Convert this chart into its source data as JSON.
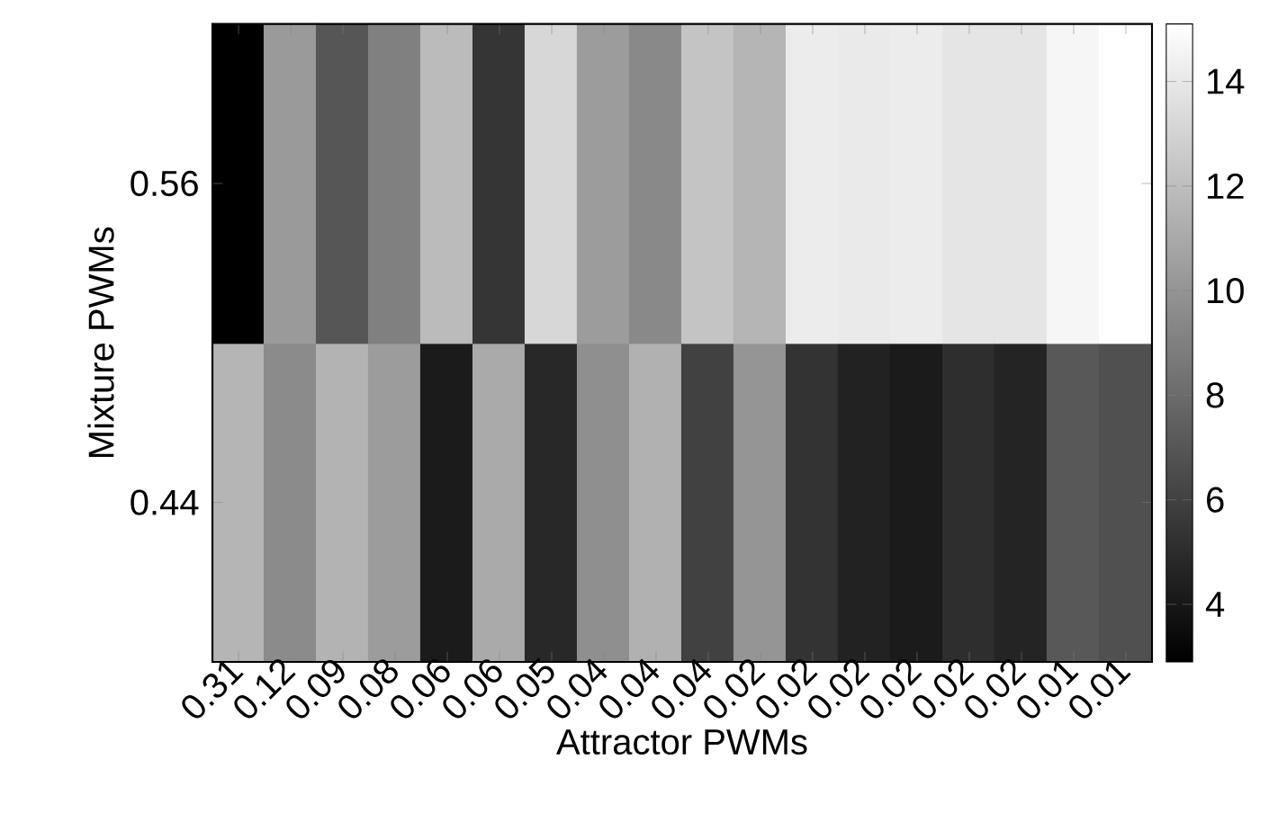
{
  "chart_data": {
    "type": "heatmap",
    "xlabel": "Attractor PWMs",
    "ylabel": "Mixture PWMs",
    "categories": [
      "0.31",
      "0.12",
      "0.09",
      "0.08",
      "0.06",
      "0.06",
      "0.05",
      "0.04",
      "0.04",
      "0.04",
      "0.02",
      "0.02",
      "0.02",
      "0.02",
      "0.02",
      "0.02",
      "0.01",
      "0.01"
    ],
    "y_categories": [
      "0.56",
      "0.44"
    ],
    "cells": [
      [
        2.9,
        10.2,
        7.0,
        9.0,
        11.8,
        5.4,
        13.1,
        10.3,
        9.4,
        12.2,
        11.5,
        14.1,
        14.0,
        14.1,
        13.8,
        13.8,
        14.6,
        15.1
      ],
      [
        11.5,
        9.5,
        11.4,
        10.3,
        4.2,
        11.0,
        4.8,
        9.7,
        11.3,
        6.0,
        10.0,
        5.3,
        4.5,
        4.2,
        5.1,
        4.6,
        7.1,
        6.7
      ]
    ],
    "clim": [
      2.9,
      15.1
    ],
    "cticks": [
      4,
      6,
      8,
      10,
      12,
      14
    ]
  }
}
